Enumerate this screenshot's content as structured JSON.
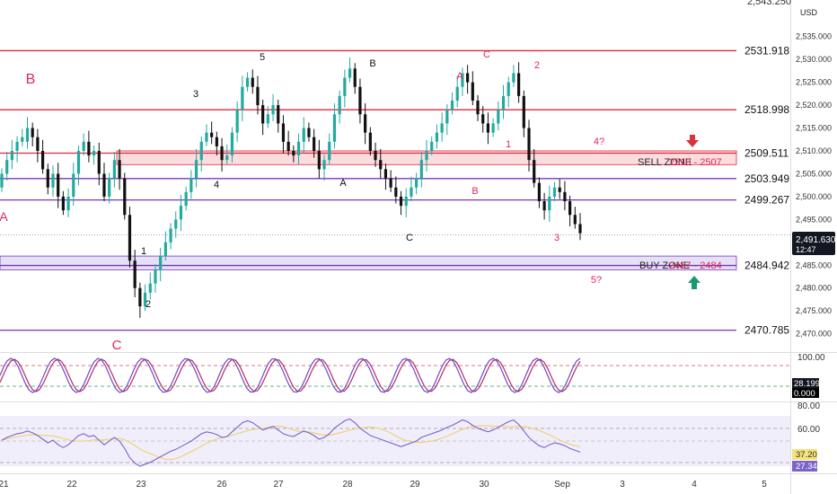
{
  "chart_data": {
    "type": "candlestick",
    "symbol_currency": "USD",
    "price_axis": {
      "min": 2466,
      "max": 2543,
      "ticks": [
        "2,535.000",
        "2,530.000",
        "2,525.000",
        "2,520.000",
        "2,515.000",
        "2,510.000",
        "2,505.000",
        "2,500.000",
        "2,495.000",
        "2,490.000",
        "2,485.000",
        "2,480.000",
        "2,475.000",
        "2,470.000"
      ],
      "top_cut_label": "2,543.250"
    },
    "x_axis": {
      "labels": [
        "21",
        "22",
        "23",
        "26",
        "27",
        "28",
        "29",
        "30",
        "Sep",
        "3",
        "4",
        "5"
      ]
    },
    "current_price": {
      "label": "2,491.630",
      "countdown": "12:47",
      "value": 2491.63
    },
    "levels": [
      {
        "value": 2531.918,
        "label": "2531.918",
        "color": "#e0283c"
      },
      {
        "value": 2518.998,
        "label": "2518.998",
        "color": "#e0283c"
      },
      {
        "value": 2509.511,
        "label": "2509.511",
        "color": "#e0283c"
      },
      {
        "value": 2503.949,
        "label": "2503.949",
        "color": "#7b35b8"
      },
      {
        "value": 2499.267,
        "label": "2499.267",
        "color": "#7b35b8"
      },
      {
        "value": 2484.942,
        "label": "2484.942",
        "color": "#7b35b8"
      },
      {
        "value": 2470.785,
        "label": "2470.785",
        "color": "#7b35b8"
      }
    ],
    "zones": [
      {
        "name": "SELL ZONE",
        "range": "2510 - 2507",
        "top": 2510,
        "bottom": 2507
      },
      {
        "name": "BUY ZONE",
        "range": "2487 - 2484",
        "top": 2487,
        "bottom": 2484
      }
    ],
    "annotations": [
      {
        "text": "B",
        "color": "#e0285a"
      },
      {
        "text": "A",
        "color": "#e0285a"
      },
      {
        "text": "C",
        "color": "#e0285a"
      },
      {
        "text": "1",
        "color": "#111111"
      },
      {
        "text": "2",
        "color": "#111111"
      },
      {
        "text": "3",
        "color": "#111111"
      },
      {
        "text": "4",
        "color": "#111111"
      },
      {
        "text": "5",
        "color": "#111111"
      },
      {
        "text": "B",
        "color": "#111111"
      },
      {
        "text": "A",
        "color": "#111111"
      },
      {
        "text": "C",
        "color": "#111111"
      },
      {
        "text": "A",
        "color": "#e0285a"
      },
      {
        "text": "C",
        "color": "#e0285a"
      },
      {
        "text": "2",
        "color": "#e0285a"
      },
      {
        "text": "1",
        "color": "#e0285a"
      },
      {
        "text": "B",
        "color": "#e0285a"
      },
      {
        "text": "3",
        "color": "#e0285a"
      },
      {
        "text": "4?",
        "color": "#e0285a"
      },
      {
        "text": "5?",
        "color": "#e0285a"
      }
    ],
    "stoch": {
      "tick_top": "100.00",
      "value_k": "28.199",
      "value_d": "0.000"
    },
    "rsi": {
      "tick_80": "80.00",
      "tick_60": "60.00",
      "value_rsi": "27.34",
      "value_ma": "37.20"
    },
    "closes": [
      2505,
      2508,
      2510,
      2512,
      2513,
      2515,
      2513,
      2510,
      2506,
      2502,
      2505,
      2500,
      2497,
      2500,
      2505,
      2510,
      2512,
      2509,
      2510,
      2505,
      2500,
      2504,
      2508,
      2504,
      2496,
      2486,
      2480,
      2476,
      2479,
      2481,
      2484,
      2487,
      2490,
      2493,
      2495,
      2498,
      2501,
      2504,
      2508,
      2512,
      2514,
      2513,
      2511,
      2508,
      2509,
      2514,
      2519,
      2524,
      2526,
      2524,
      2520,
      2516,
      2518,
      2520,
      2516,
      2512,
      2510,
      2509,
      2512,
      2515,
      2513,
      2510,
      2506,
      2508,
      2512,
      2518,
      2522,
      2526,
      2528,
      2524,
      2518,
      2514,
      2510,
      2508,
      2506,
      2504,
      2502,
      2500,
      2498,
      2500,
      2502,
      2504,
      2508,
      2510,
      2512,
      2514,
      2516,
      2519,
      2521,
      2524,
      2527,
      2525,
      2521,
      2518,
      2516,
      2514,
      2516,
      2519,
      2522,
      2525,
      2527,
      2522,
      2515,
      2508,
      2503,
      2499,
      2497,
      2500,
      2502,
      2501,
      2499,
      2496,
      2494,
      2492
    ],
    "opens": [
      2502,
      2505,
      2508,
      2510,
      2512,
      2512,
      2515,
      2513,
      2510,
      2506,
      2502,
      2505,
      2500,
      2497,
      2500,
      2505,
      2510,
      2512,
      2509,
      2510,
      2505,
      2500,
      2504,
      2508,
      2504,
      2496,
      2486,
      2480,
      2476,
      2479,
      2481,
      2484,
      2487,
      2490,
      2493,
      2495,
      2498,
      2501,
      2504,
      2508,
      2512,
      2514,
      2513,
      2511,
      2508,
      2509,
      2514,
      2519,
      2524,
      2526,
      2524,
      2520,
      2516,
      2518,
      2520,
      2516,
      2512,
      2510,
      2509,
      2512,
      2515,
      2513,
      2510,
      2506,
      2508,
      2512,
      2518,
      2522,
      2526,
      2528,
      2524,
      2518,
      2514,
      2510,
      2508,
      2506,
      2504,
      2502,
      2500,
      2498,
      2500,
      2502,
      2504,
      2508,
      2510,
      2512,
      2514,
      2516,
      2519,
      2521,
      2524,
      2527,
      2525,
      2521,
      2518,
      2516,
      2514,
      2516,
      2519,
      2522,
      2525,
      2527,
      2522,
      2515,
      2508,
      2503,
      2499,
      2497,
      2500,
      2502,
      2501,
      2499,
      2496,
      2494
    ]
  }
}
